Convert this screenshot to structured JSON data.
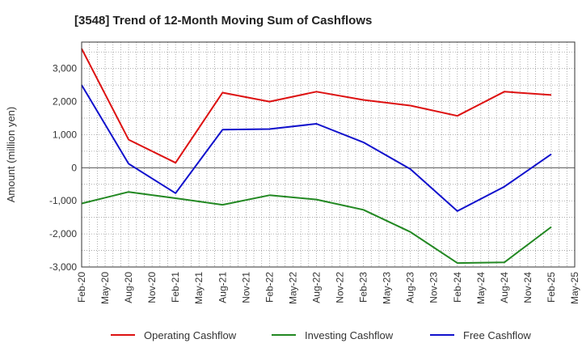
{
  "chart_data": {
    "type": "line",
    "title": "[3548]  Trend of 12-Month Moving Sum of Cashflows",
    "xlabel": "",
    "ylabel": "Amount (million yen)",
    "x": [
      "Feb-20",
      "May-20",
      "Aug-20",
      "Nov-20",
      "Feb-21",
      "May-21",
      "Aug-21",
      "Nov-21",
      "Feb-22",
      "May-22",
      "Aug-22",
      "Nov-22",
      "Feb-23",
      "May-23",
      "Aug-23",
      "Nov-23",
      "Feb-24",
      "May-24",
      "Aug-24",
      "Nov-24",
      "Feb-25",
      "May-25"
    ],
    "ylim": [
      -3000,
      3800
    ],
    "yticks": [
      -3000,
      -2000,
      -1000,
      0,
      1000,
      2000,
      3000
    ],
    "ytick_labels": [
      "-3,000",
      "-2,000",
      "-1,000",
      "0",
      "1,000",
      "2,000",
      "3,000"
    ],
    "grid": true,
    "legend_position": "bottom",
    "series": [
      {
        "name": "Operating Cashflow",
        "color": "#dd1111",
        "x": [
          "Feb-20",
          "Aug-20",
          "Feb-21",
          "Aug-21",
          "Feb-22",
          "Aug-22",
          "Feb-23",
          "Aug-23",
          "Feb-24",
          "Aug-24",
          "Feb-25"
        ],
        "values": [
          3600,
          850,
          150,
          2270,
          2000,
          2300,
          2050,
          1880,
          1570,
          2300,
          2200
        ]
      },
      {
        "name": "Investing Cashflow",
        "color": "#228822",
        "x": [
          "Feb-20",
          "Aug-20",
          "Feb-21",
          "Aug-21",
          "Feb-22",
          "Aug-22",
          "Feb-23",
          "Aug-23",
          "Feb-24",
          "Aug-24",
          "Feb-25"
        ],
        "values": [
          -1080,
          -730,
          -920,
          -1120,
          -830,
          -960,
          -1270,
          -1940,
          -2880,
          -2860,
          -1790
        ]
      },
      {
        "name": "Free Cashflow",
        "color": "#1111cc",
        "x": [
          "Feb-20",
          "Aug-20",
          "Feb-21",
          "Aug-21",
          "Feb-22",
          "Aug-22",
          "Feb-23",
          "Aug-23",
          "Feb-24",
          "Aug-24",
          "Feb-25"
        ],
        "values": [
          2500,
          120,
          -770,
          1150,
          1170,
          1330,
          770,
          -40,
          -1310,
          -570,
          410
        ]
      }
    ]
  }
}
